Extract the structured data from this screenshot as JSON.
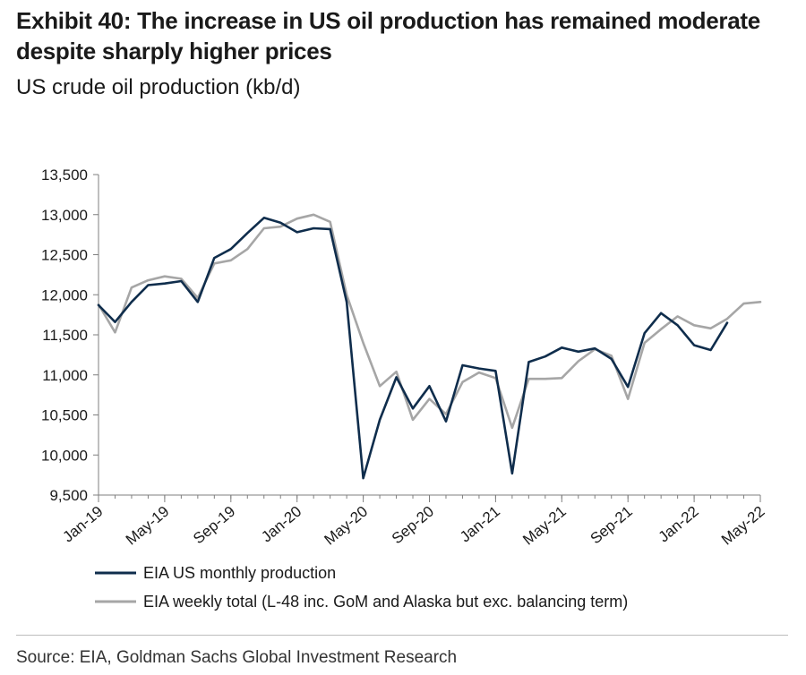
{
  "header": {
    "title": "Exhibit 40: The increase in US oil production has remained moderate despite sharply higher prices",
    "subtitle": "US crude oil production (kb/d)"
  },
  "footer": {
    "source": "Source: EIA, Goldman Sachs Global Investment Research"
  },
  "colors": {
    "monthly": "#0f2d4c",
    "weekly": "#a6a6a6",
    "axis": "#7f7f7f"
  },
  "chart_data": {
    "type": "line",
    "title": "",
    "xlabel": "",
    "ylabel": "",
    "ylim": [
      9500,
      13500
    ],
    "y_ticks": [
      9500,
      10000,
      10500,
      11000,
      11500,
      12000,
      12500,
      13000,
      13500
    ],
    "y_tick_labels": [
      "9,500",
      "10,000",
      "10,500",
      "11,000",
      "11,500",
      "12,000",
      "12,500",
      "13,000",
      "13,500"
    ],
    "x_range": [
      "Jan-19",
      "May-22"
    ],
    "x_tick_labels": [
      "Jan-19",
      "May-19",
      "Sep-19",
      "Jan-20",
      "May-20",
      "Sep-20",
      "Jan-21",
      "May-21",
      "Sep-21",
      "Jan-22",
      "May-22"
    ],
    "grid": false,
    "legend_position": "bottom-left",
    "series": [
      {
        "name": "EIA US monthly production",
        "color": "#0f2d4c",
        "points": [
          [
            "Jan-19",
            11870
          ],
          [
            "Feb-19",
            11660
          ],
          [
            "Mar-19",
            11910
          ],
          [
            "Apr-19",
            12120
          ],
          [
            "May-19",
            12140
          ],
          [
            "Jun-19",
            12170
          ],
          [
            "Jul-19",
            11910
          ],
          [
            "Aug-19",
            12460
          ],
          [
            "Sep-19",
            12570
          ],
          [
            "Oct-19",
            12770
          ],
          [
            "Nov-19",
            12960
          ],
          [
            "Dec-19",
            12900
          ],
          [
            "Jan-20",
            12780
          ],
          [
            "Feb-20",
            12830
          ],
          [
            "Mar-20",
            12820
          ],
          [
            "Apr-20",
            11910
          ],
          [
            "May-20",
            9710
          ],
          [
            "Jun-20",
            10440
          ],
          [
            "Jul-20",
            10970
          ],
          [
            "Aug-20",
            10580
          ],
          [
            "Sep-20",
            10860
          ],
          [
            "Oct-20",
            10420
          ],
          [
            "Nov-20",
            11120
          ],
          [
            "Dec-20",
            11080
          ],
          [
            "Jan-21",
            11050
          ],
          [
            "Feb-21",
            9770
          ],
          [
            "Mar-21",
            11160
          ],
          [
            "Apr-21",
            11230
          ],
          [
            "May-21",
            11340
          ],
          [
            "Jun-21",
            11290
          ],
          [
            "Jul-21",
            11330
          ],
          [
            "Aug-21",
            11200
          ],
          [
            "Sep-21",
            10850
          ],
          [
            "Oct-21",
            11520
          ],
          [
            "Nov-21",
            11770
          ],
          [
            "Dec-21",
            11620
          ],
          [
            "Jan-22",
            11370
          ],
          [
            "Feb-22",
            11310
          ],
          [
            "Mar-22",
            11650
          ]
        ]
      },
      {
        "name": "EIA weekly total (L-48 inc. GoM and Alaska but exc. balancing term)",
        "color": "#a6a6a6",
        "points": [
          [
            "Jan-19",
            11880
          ],
          [
            "Feb-19",
            11530
          ],
          [
            "Mar-19",
            12090
          ],
          [
            "Apr-19",
            12180
          ],
          [
            "May-19",
            12230
          ],
          [
            "Jun-19",
            12200
          ],
          [
            "Jul-19",
            11960
          ],
          [
            "Aug-19",
            12390
          ],
          [
            "Sep-19",
            12430
          ],
          [
            "Oct-19",
            12570
          ],
          [
            "Nov-19",
            12830
          ],
          [
            "Dec-19",
            12850
          ],
          [
            "Jan-20",
            12950
          ],
          [
            "Feb-20",
            13000
          ],
          [
            "Mar-20",
            12910
          ],
          [
            "Apr-20",
            12000
          ],
          [
            "May-20",
            11400
          ],
          [
            "Jun-20",
            10860
          ],
          [
            "Jul-20",
            11040
          ],
          [
            "Aug-20",
            10440
          ],
          [
            "Sep-20",
            10700
          ],
          [
            "Oct-20",
            10510
          ],
          [
            "Nov-20",
            10910
          ],
          [
            "Dec-20",
            11030
          ],
          [
            "Jan-21",
            10960
          ],
          [
            "Feb-21",
            10340
          ],
          [
            "Mar-21",
            10950
          ],
          [
            "Apr-21",
            10950
          ],
          [
            "May-21",
            10960
          ],
          [
            "Jun-21",
            11170
          ],
          [
            "Jul-21",
            11320
          ],
          [
            "Aug-21",
            11240
          ],
          [
            "Sep-21",
            10700
          ],
          [
            "Oct-21",
            11400
          ],
          [
            "Nov-21",
            11570
          ],
          [
            "Dec-21",
            11730
          ],
          [
            "Jan-22",
            11620
          ],
          [
            "Feb-22",
            11580
          ],
          [
            "Mar-22",
            11700
          ],
          [
            "Apr-22",
            11890
          ],
          [
            "May-22",
            11910
          ]
        ]
      }
    ]
  }
}
